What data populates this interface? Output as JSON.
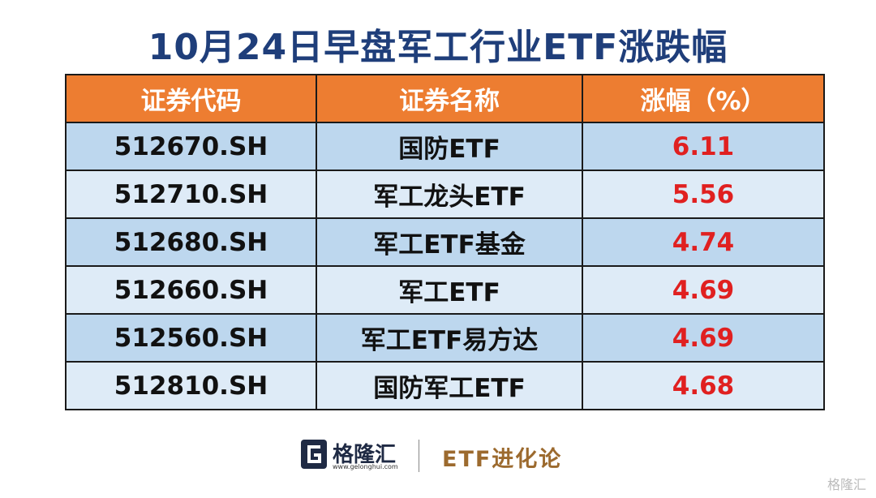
{
  "title": "10月24日早盘军工行业ETF涨跌幅",
  "table": {
    "headers": [
      "证券代码",
      "证券名称",
      "涨幅（%）"
    ],
    "rows": [
      [
        "512670.SH",
        "国防ETF",
        "6.11"
      ],
      [
        "512710.SH",
        "军工龙头ETF",
        "5.56"
      ],
      [
        "512680.SH",
        "军工ETF基金",
        "4.74"
      ],
      [
        "512660.SH",
        "军工ETF",
        "4.69"
      ],
      [
        "512560.SH",
        "军工ETF易方达",
        "4.69"
      ],
      [
        "512810.SH",
        "国防军工ETF",
        "4.68"
      ]
    ]
  },
  "footer": {
    "logo": "格隆汇",
    "url": "www.gelonghui.com",
    "column": "ETF进化论"
  },
  "watermark": "格隆汇"
}
